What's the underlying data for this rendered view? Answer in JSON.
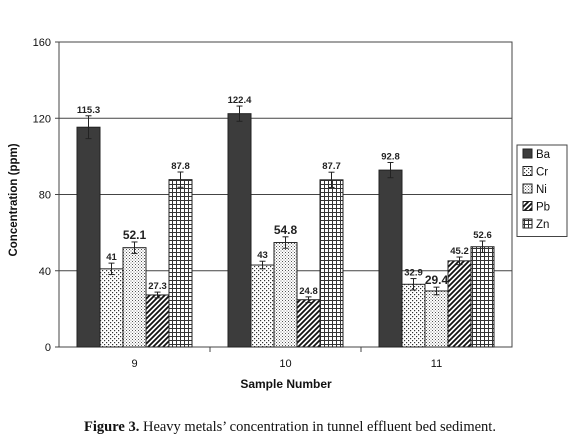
{
  "chart_data": {
    "type": "bar",
    "categories": [
      "9",
      "10",
      "11"
    ],
    "series": [
      {
        "name": "Ba",
        "values": [
          115.3,
          122.4,
          92.8
        ],
        "errors": [
          6,
          4,
          4
        ],
        "labels": [
          "115.3",
          "122.4",
          "92.8"
        ],
        "fill": "#3c3c3c",
        "pattern": "solid"
      },
      {
        "name": "Cr",
        "values": [
          41,
          43,
          32.9
        ],
        "errors": [
          3,
          2,
          3
        ],
        "labels": [
          "41",
          "43",
          "32.9"
        ],
        "fill": "#ffffff",
        "pattern": "dots"
      },
      {
        "name": "Ni",
        "values": [
          52.1,
          54.8,
          29.4
        ],
        "errors": [
          3,
          3,
          2
        ],
        "labels": [
          "52.1",
          "54.8",
          "29.4"
        ],
        "fill": "#e2e2e2",
        "pattern": "fine"
      },
      {
        "name": "Pb",
        "values": [
          27.3,
          24.8,
          45.2
        ],
        "errors": [
          1.5,
          1.5,
          2
        ],
        "labels": [
          "27.3",
          "24.8",
          "45.2"
        ],
        "fill": "#ffffff",
        "pattern": "diag"
      },
      {
        "name": "Zn",
        "values": [
          87.8,
          87.7,
          52.6
        ],
        "errors": [
          4,
          4,
          3
        ],
        "labels": [
          "87.8",
          "87.7",
          "52.6"
        ],
        "fill": "#ffffff",
        "pattern": "grid"
      }
    ],
    "xlabel": "Sample Number",
    "ylabel": "Concentration (ppm)",
    "ylim": [
      0,
      160
    ],
    "yticks": [
      0,
      40,
      80,
      120,
      160
    ],
    "grid": true,
    "legend": "right"
  },
  "caption": {
    "label": "Figure 3.",
    "text": " Heavy metals’ concentration in tunnel effluent bed sediment."
  }
}
